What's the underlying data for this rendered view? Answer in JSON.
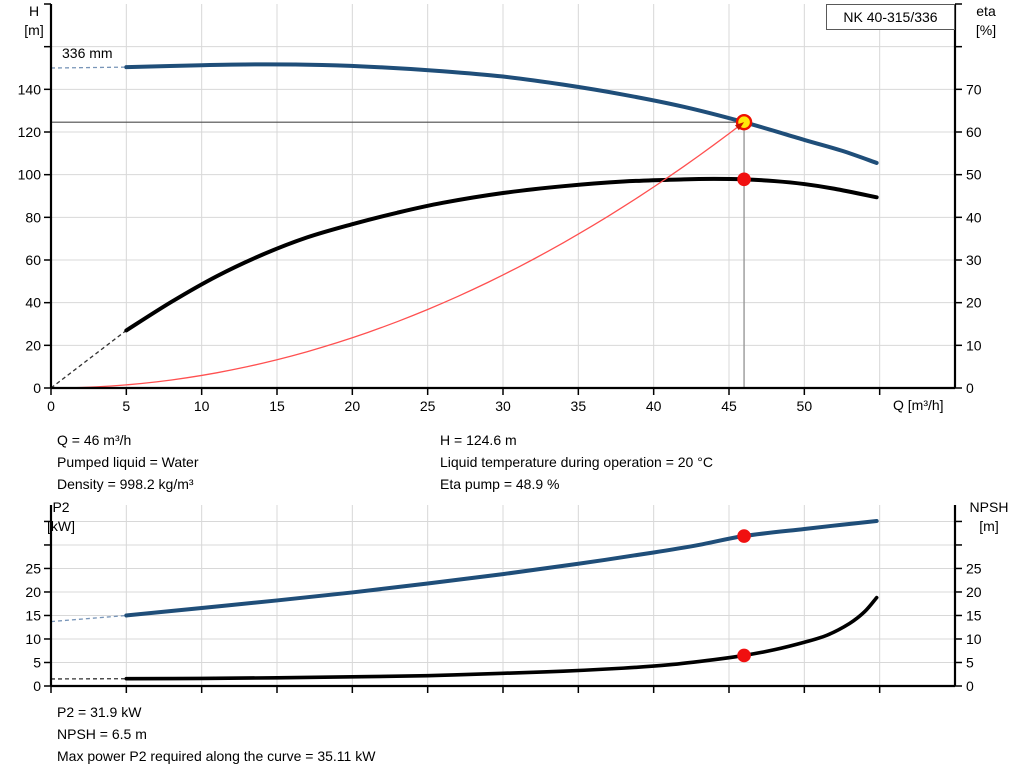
{
  "title_box": {
    "label": "NK 40-315/336"
  },
  "colors": {
    "curve_blue": "#1f4e79",
    "curve_blue_dash": "#7895b8",
    "curve_black": "#000000",
    "curve_black_dash": "#333333",
    "system_red": "#ff5050",
    "arrow_red": "#c81400",
    "marker_red": "#f01010",
    "marker_yellow": "#ffe90a",
    "marker_yellow_ring": "#ee1000",
    "grid": "#d8d8d8",
    "axis": "#000000",
    "duty_h_line": "#4d4d4d",
    "duty_v_line": "#999999"
  },
  "info_panel": {
    "left": [
      "Q = 46 m³/h",
      "Pumped liquid = Water",
      "Density = 998.2 kg/m³"
    ],
    "right": [
      "H = 124.6 m",
      "Liquid temperature during operation = 20 °C",
      "Eta pump = 48.9 %"
    ]
  },
  "bottom_info": [
    "P2 = 31.9 kW",
    "NPSH = 6.5 m",
    "Max power P2 required along the curve = 35.11 kW"
  ],
  "chart_data": [
    {
      "type": "line",
      "title": "NK 40-315/336",
      "labels": {
        "y_left": [
          "H",
          "[m]"
        ],
        "y_right": [
          "eta",
          "[%]"
        ],
        "x": "Q [m³/h]",
        "impeller": "336 mm",
        "title": "NK 40-315/336"
      },
      "xlim": [
        0,
        60
      ],
      "ylim_left": [
        0,
        180
      ],
      "ylim_right": [
        0,
        90
      ],
      "grid": true,
      "x_tick_labels": [
        0,
        5,
        10,
        15,
        20,
        25,
        30,
        35,
        40,
        45,
        50
      ],
      "x_ticks_unlabeled": [
        55
      ],
      "y_left_tick_labels": [
        0,
        20,
        40,
        60,
        80,
        100,
        120,
        140
      ],
      "y_left_ticks_unlabeled": [
        160,
        180
      ],
      "y_right_tick_labels": [
        0,
        10,
        20,
        30,
        40,
        50,
        60,
        70
      ],
      "y_right_ticks_unlabeled": [
        80,
        90
      ],
      "series": [
        {
          "name": "head-curve",
          "axis": "left",
          "width": 4,
          "color_key": "curve_blue",
          "dash_color_key": "curve_blue_dash",
          "dash_lead": [
            [
              0,
              150.0
            ],
            [
              5,
              150.4
            ]
          ],
          "points": [
            [
              5,
              150.4
            ],
            [
              10,
              151.3
            ],
            [
              14,
              151.7
            ],
            [
              18,
              151.4
            ],
            [
              22,
              150.3
            ],
            [
              26,
              148.5
            ],
            [
              30,
              146.0
            ],
            [
              34,
              142.2
            ],
            [
              38,
              137.5
            ],
            [
              42,
              131.8
            ],
            [
              46,
              124.6
            ],
            [
              50,
              116.3
            ],
            [
              52.5,
              111.2
            ],
            [
              54.8,
              105.5
            ]
          ]
        },
        {
          "name": "efficiency-curve",
          "axis": "right",
          "width": 4,
          "color_key": "curve_black",
          "dash_color_key": "curve_black_dash",
          "dash_lead": [
            [
              0,
              0
            ],
            [
              5,
              13.5
            ]
          ],
          "points": [
            [
              5,
              13.5
            ],
            [
              8,
              20.2
            ],
            [
              11,
              26.2
            ],
            [
              14,
              31.2
            ],
            [
              17,
              35.3
            ],
            [
              20,
              38.4
            ],
            [
              23,
              41.1
            ],
            [
              26,
              43.4
            ],
            [
              30,
              45.7
            ],
            [
              34,
              47.3
            ],
            [
              38,
              48.4
            ],
            [
              42,
              48.9
            ],
            [
              44,
              49.0
            ],
            [
              46,
              48.9
            ],
            [
              48,
              48.5
            ],
            [
              50,
              47.8
            ],
            [
              52,
              46.7
            ],
            [
              54.8,
              44.7
            ]
          ]
        },
        {
          "name": "system-curve",
          "axis": "left",
          "width": 1.3,
          "color_key": "system_red",
          "shape": "quadratic",
          "through": [
            46,
            124.6
          ],
          "range": [
            0,
            46
          ]
        }
      ],
      "operating_point": {
        "Q": 46,
        "H": 124.6,
        "eta": 48.9
      }
    },
    {
      "type": "line",
      "labels": {
        "y_left": [
          "P2",
          "[kW]"
        ],
        "y_right": [
          "NPSH",
          "[m]"
        ]
      },
      "xlim": [
        0,
        60
      ],
      "ylim": [
        0,
        38.5
      ],
      "grid": true,
      "x_tick_labels": [],
      "x_ticks_unlabeled": [
        0,
        5,
        10,
        15,
        20,
        25,
        30,
        35,
        40,
        45,
        50,
        55
      ],
      "y_left_tick_labels": [
        0,
        5,
        10,
        15,
        20,
        25
      ],
      "y_left_ticks_unlabeled": [
        30,
        35
      ],
      "y_right_tick_labels": [
        0,
        5,
        10,
        15,
        20,
        25
      ],
      "y_right_ticks_unlabeled": [
        30,
        35
      ],
      "series": [
        {
          "name": "p2-curve",
          "axis": "left",
          "width": 4,
          "color_key": "curve_blue",
          "dash_color_key": "curve_blue_dash",
          "dash_lead": [
            [
              0,
              13.7
            ],
            [
              5,
              15.0
            ]
          ],
          "points": [
            [
              5,
              15.0
            ],
            [
              10,
              16.6
            ],
            [
              15,
              18.2
            ],
            [
              20,
              19.9
            ],
            [
              25,
              21.8
            ],
            [
              30,
              23.8
            ],
            [
              35,
              26.0
            ],
            [
              40,
              28.4
            ],
            [
              43,
              30.0
            ],
            [
              46,
              31.9
            ],
            [
              50,
              33.4
            ],
            [
              52.5,
              34.3
            ],
            [
              54.8,
              35.1
            ]
          ]
        },
        {
          "name": "npsh-curve",
          "axis": "left",
          "width": 3.6,
          "color_key": "curve_black",
          "dash_color_key": "curve_black_dash",
          "dash_lead": [
            [
              0,
              1.5
            ],
            [
              5,
              1.55
            ]
          ],
          "points": [
            [
              5,
              1.55
            ],
            [
              10,
              1.6
            ],
            [
              15,
              1.75
            ],
            [
              20,
              1.95
            ],
            [
              25,
              2.2
            ],
            [
              30,
              2.7
            ],
            [
              34,
              3.15
            ],
            [
              38,
              3.8
            ],
            [
              41,
              4.5
            ],
            [
              44,
              5.6
            ],
            [
              46,
              6.5
            ],
            [
              48,
              7.7
            ],
            [
              50,
              9.3
            ],
            [
              51.5,
              10.8
            ],
            [
              53,
              13.3
            ],
            [
              54,
              15.8
            ],
            [
              54.8,
              18.8
            ]
          ]
        }
      ],
      "operating_points": [
        {
          "series": "p2-curve",
          "Q": 46,
          "value": 31.9
        },
        {
          "series": "npsh-curve",
          "Q": 46,
          "value": 6.5
        }
      ]
    }
  ]
}
